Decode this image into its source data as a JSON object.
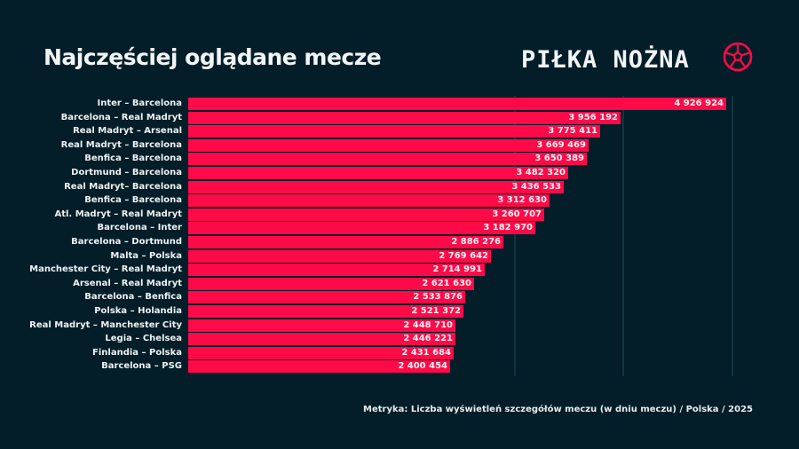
{
  "header": {
    "title": "Najczęściej oglądane mecze",
    "brand": "PIŁKA NOŻNA",
    "brand_icon": "football-icon"
  },
  "footer": {
    "metric": "Metryka: Liczba wyświetleń szczegółów meczu (w dniu meczu) / Polska / 2025"
  },
  "colors": {
    "background": "#031e29",
    "bar": "#ff0a48",
    "text": "#eef2f4",
    "grid": "#123442"
  },
  "chart_data": {
    "type": "bar",
    "orientation": "horizontal",
    "title": "Najczęściej oglądane mecze",
    "xlabel": "Liczba wyświetleń szczegółów meczu (w dniu meczu)",
    "ylabel": "",
    "grid": true,
    "gridlines_at": [
      3000000,
      4000000,
      5000000
    ],
    "xlim": [
      0,
      5100000
    ],
    "categories": [
      "Inter – Barcelona",
      "Barcelona – Real Madryt",
      "Real Madryt – Arsenal",
      "Real Madryt – Barcelona",
      "Benfica – Barcelona",
      "Dortmund – Barcelona",
      "Real Madryt– Barcelona",
      "Benfica – Barcelona",
      "Atl. Madryt – Real Madryt",
      "Barcelona – Inter",
      "Barcelona – Dortmund",
      "Malta – Polska",
      "Manchester City – Real Madryt",
      "Arsenal – Real Madryt",
      "Barcelona – Benfica",
      "Polska – Holandia",
      "Real Madryt – Manchester City",
      "Legia – Chelsea",
      "Finlandia – Polska",
      "Barcelona – PSG"
    ],
    "values": [
      4926924,
      3956192,
      3775411,
      3669469,
      3650389,
      3482320,
      3436533,
      3312630,
      3260707,
      3182970,
      2886276,
      2769642,
      2714991,
      2621630,
      2533876,
      2521372,
      2448710,
      2446221,
      2431684,
      2400454
    ],
    "value_labels": [
      "4 926 924",
      "3 956 192",
      "3 775 411",
      "3 669 469",
      "3 650 389",
      "3 482 320",
      "3 436 533",
      "3 312 630",
      "3 260 707",
      "3 182 970",
      "2 886 276",
      "2 769 642",
      "2 714 991",
      "2 621 630",
      "2 533 876",
      "2 521 372",
      "2 448 710",
      "2 446 221",
      "2 431 684",
      "2 400 454"
    ]
  }
}
